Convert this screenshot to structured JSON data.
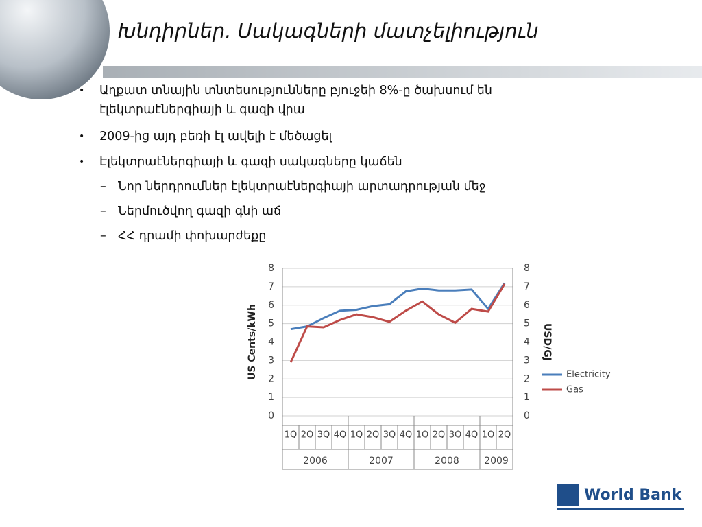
{
  "slide": {
    "title": "Խնդիրներ. Սակագների մատչելիություն",
    "bullets": [
      {
        "text": "Աղքատ տնային տնտեսությունները բյուջեի 8%-ը ծախսում են էլեկտրաէներգիայի և գազի վրա"
      },
      {
        "text": "2009-ից այդ բեռի էլ ավելի է մեծացել"
      },
      {
        "text": "Էլեկտրաէներգիայի և գազի սակագները կաճեն",
        "subbullets": [
          "Նոր ներդրումներ էլեկտրաէներգիայի արտադրության մեջ",
          "Ներմուծվող գազի գնի աճ",
          "ՀՀ դրամի փոխարժեքը"
        ]
      }
    ],
    "logo": "World Bank"
  },
  "chart_data": {
    "type": "line",
    "y_label": "US Cents/kWh",
    "y2_label": "USD/GJ",
    "category_groups": [
      {
        "name": "2006",
        "categories": [
          "1Q",
          "2Q",
          "3Q",
          "4Q"
        ]
      },
      {
        "name": "2007",
        "categories": [
          "1Q",
          "2Q",
          "3Q",
          "4Q"
        ]
      },
      {
        "name": "2008",
        "categories": [
          "1Q",
          "2Q",
          "3Q",
          "4Q"
        ]
      },
      {
        "name": "2009",
        "categories": [
          "1Q",
          "2Q"
        ]
      }
    ],
    "series": [
      {
        "name": "Electricity",
        "color": "#4a7ebb",
        "values": [
          4.7,
          4.85,
          5.3,
          5.7,
          5.75,
          5.95,
          6.05,
          6.75,
          6.9,
          6.8,
          6.8,
          6.85,
          5.8,
          7.2
        ]
      },
      {
        "name": "Gas",
        "color": "#be4b48",
        "axis": "y2",
        "values": [
          2.9,
          4.85,
          4.8,
          5.2,
          5.5,
          5.35,
          5.1,
          5.7,
          6.2,
          5.5,
          5.05,
          5.8,
          5.65,
          7.15
        ]
      }
    ],
    "ylim": [
      0,
      8
    ],
    "yticks": [
      0,
      1,
      2,
      3,
      4,
      5,
      6,
      7,
      8
    ],
    "y2lim": [
      0,
      8
    ],
    "y2ticks": [
      0,
      1,
      2,
      3,
      4,
      5,
      6,
      7,
      8
    ],
    "grid": true,
    "legend": "right"
  }
}
